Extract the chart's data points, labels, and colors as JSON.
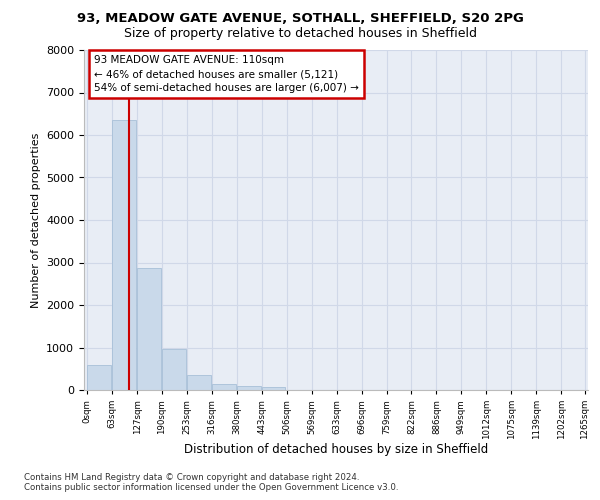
{
  "title_line1": "93, MEADOW GATE AVENUE, SOTHALL, SHEFFIELD, S20 2PG",
  "title_line2": "Size of property relative to detached houses in Sheffield",
  "xlabel": "Distribution of detached houses by size in Sheffield",
  "ylabel": "Number of detached properties",
  "bar_values": [
    580,
    6350,
    2880,
    960,
    350,
    150,
    90,
    60,
    0,
    0,
    0,
    0,
    0,
    0,
    0,
    0,
    0,
    0,
    0,
    0
  ],
  "bar_labels": [
    "0sqm",
    "63sqm",
    "127sqm",
    "190sqm",
    "253sqm",
    "316sqm",
    "380sqm",
    "443sqm",
    "506sqm",
    "569sqm",
    "633sqm",
    "696sqm",
    "759sqm",
    "822sqm",
    "886sqm",
    "949sqm",
    "1012sqm",
    "1075sqm",
    "1139sqm",
    "1202sqm",
    "1265sqm"
  ],
  "bar_color": "#c9d9ea",
  "bar_edgecolor": "#a8c0d8",
  "grid_color": "#d0d8e8",
  "background_color": "#e8edf5",
  "annotation_text": "93 MEADOW GATE AVENUE: 110sqm\n← 46% of detached houses are smaller (5,121)\n54% of semi-detached houses are larger (6,007) →",
  "annotation_box_edgecolor": "#cc0000",
  "vline_color": "#cc0000",
  "ylim": [
    0,
    8000
  ],
  "yticks": [
    0,
    1000,
    2000,
    3000,
    4000,
    5000,
    6000,
    7000,
    8000
  ],
  "footnote": "Contains HM Land Registry data © Crown copyright and database right 2024.\nContains public sector information licensed under the Open Government Licence v3.0."
}
